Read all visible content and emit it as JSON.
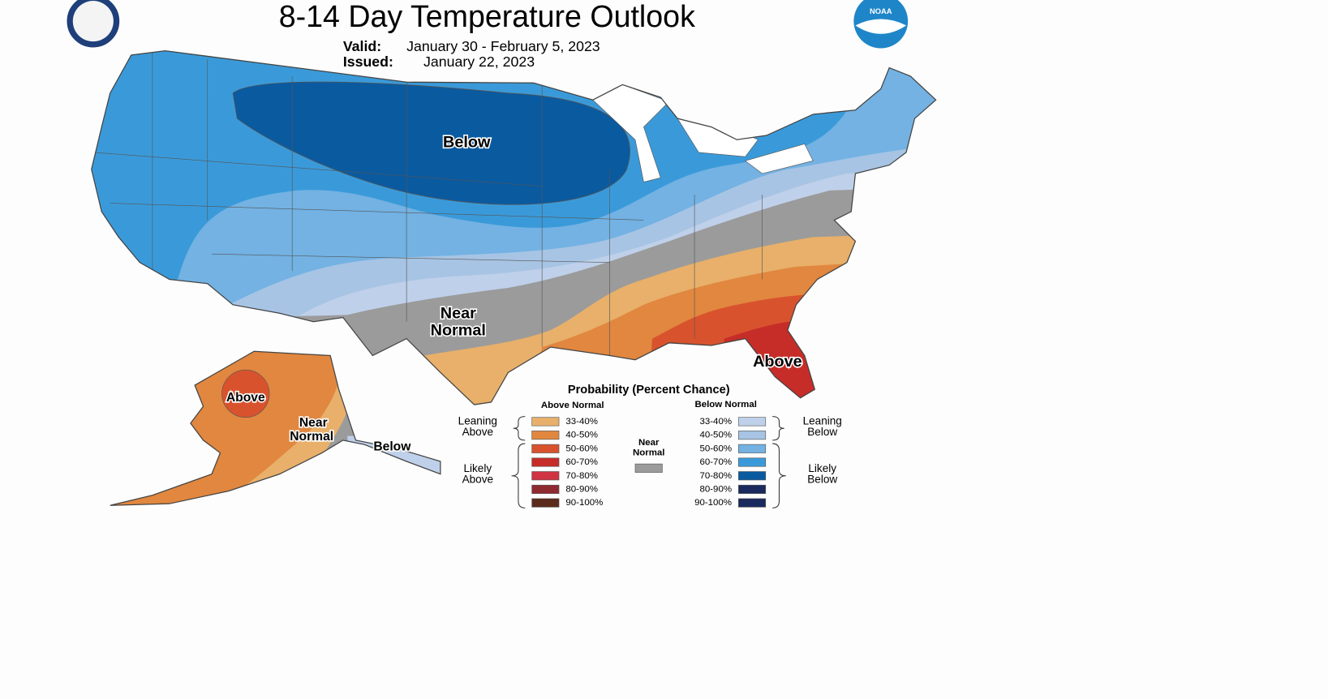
{
  "header": {
    "title": "8-14 Day Temperature Outlook",
    "valid_label": "Valid:",
    "valid": "January 30 - February 5, 2023",
    "issued_label": "Issued:",
    "issued": "January 22, 2023",
    "noaa_logo": "NOAA"
  },
  "map": {
    "conus": {
      "below": "Below",
      "near_normal": [
        "Near",
        "Normal"
      ],
      "above": "Above"
    },
    "alaska": {
      "above": "Above",
      "near_normal": [
        "Near",
        "Normal"
      ],
      "below": "Below"
    }
  },
  "legend": {
    "title": "Probability (Percent Chance)",
    "above_header": "Above Normal",
    "below_header": "Below Normal",
    "near_label": [
      "Near",
      "Normal"
    ],
    "near_color": "#9b9b9b",
    "above_groups": [
      [
        "Leaning",
        "Above"
      ],
      [
        "Likely",
        "Above"
      ]
    ],
    "below_groups": [
      [
        "Leaning",
        "Below"
      ],
      [
        "Likely",
        "Below"
      ]
    ],
    "above": [
      {
        "label": "33-40%",
        "color": "#e8b06a"
      },
      {
        "label": "40-50%",
        "color": "#e1873f"
      },
      {
        "label": "50-60%",
        "color": "#d8532d"
      },
      {
        "label": "60-70%",
        "color": "#c62d28"
      },
      {
        "label": "70-80%",
        "color": "#d03341"
      },
      {
        "label": "80-90%",
        "color": "#8e2a30"
      },
      {
        "label": "90-100%",
        "color": "#5a2a1c"
      }
    ],
    "below": [
      {
        "label": "33-40%",
        "color": "#bfd0ea"
      },
      {
        "label": "40-50%",
        "color": "#a7c4e4"
      },
      {
        "label": "50-60%",
        "color": "#73b2e3"
      },
      {
        "label": "60-70%",
        "color": "#3a9ad9"
      },
      {
        "label": "70-80%",
        "color": "#0a5aa0"
      },
      {
        "label": "80-90%",
        "color": "#1a2a5e"
      },
      {
        "label": "90-100%",
        "color": "#1a2a5e"
      }
    ]
  }
}
